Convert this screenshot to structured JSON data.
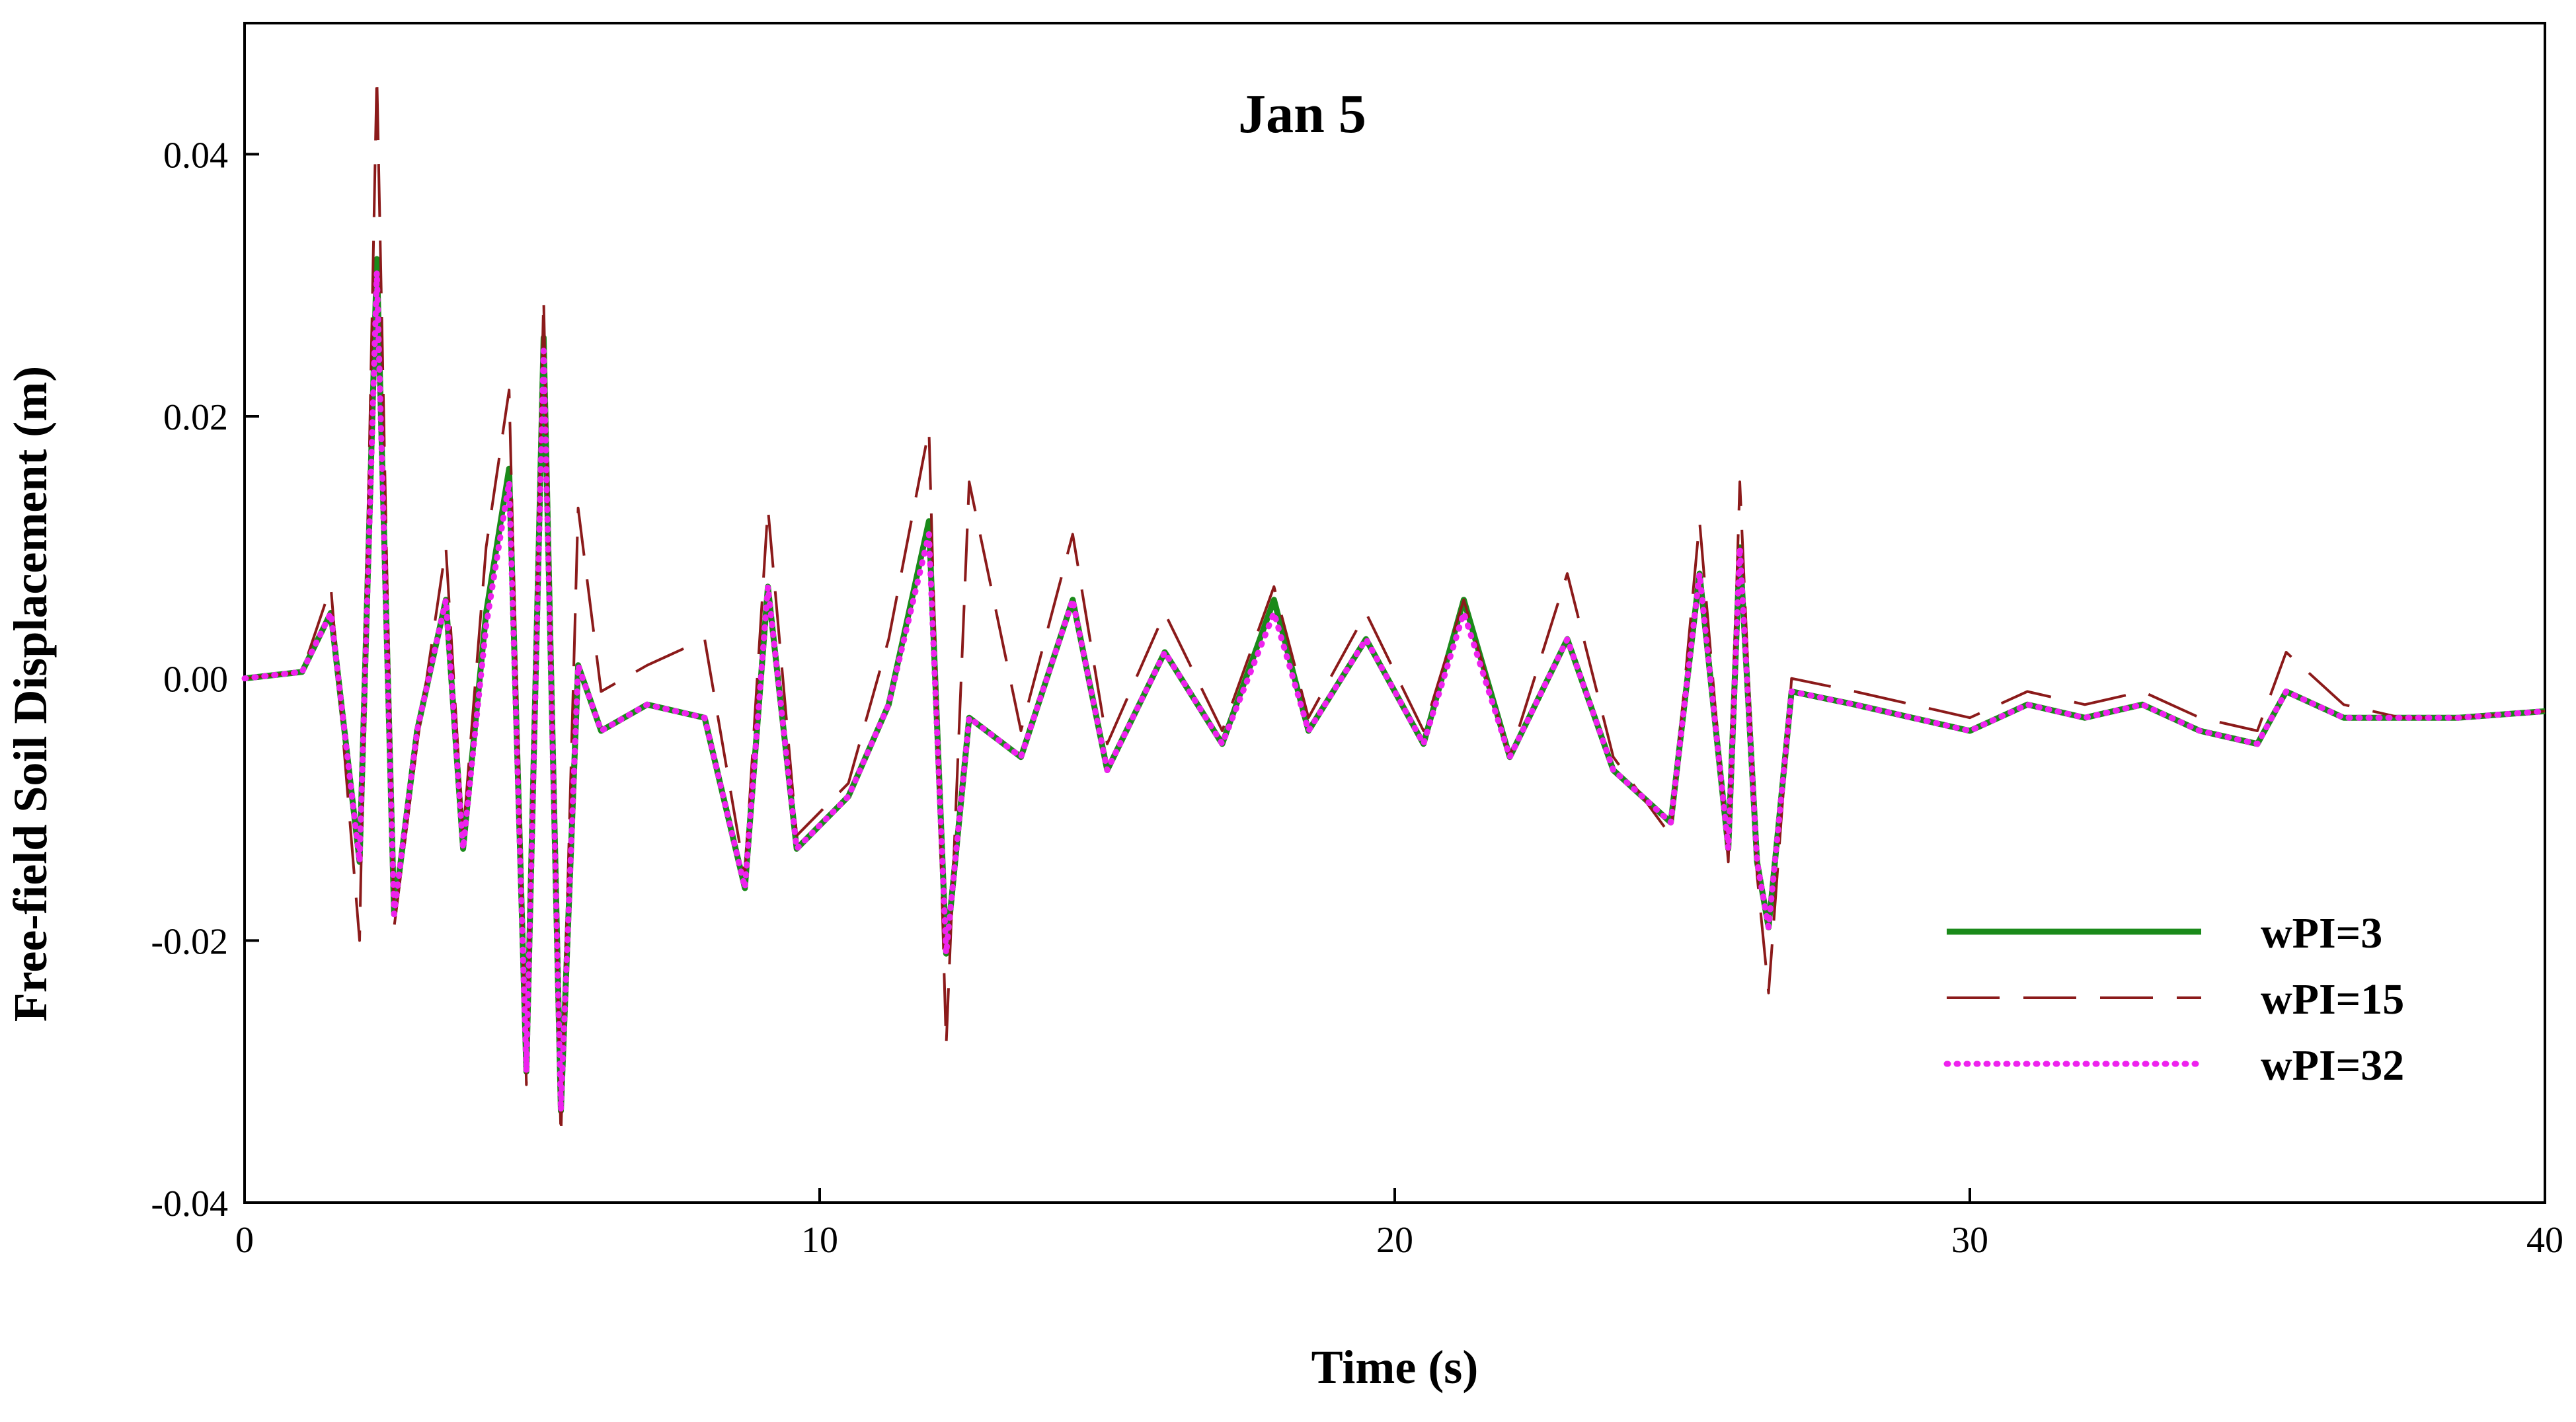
{
  "chart_data": {
    "type": "line",
    "title": "Jan 5",
    "xlabel": "Time (s)",
    "ylabel": "Free-field Soil Displacement (m)",
    "xlim": [
      0,
      40
    ],
    "ylim": [
      -0.04,
      0.05
    ],
    "x_ticks": [
      0,
      10,
      20,
      30,
      40
    ],
    "x_tick_labels": [
      "0",
      "10",
      "20",
      "30",
      "40"
    ],
    "y_ticks": [
      -0.04,
      -0.02,
      0.0,
      0.02,
      0.04
    ],
    "y_tick_labels": [
      "-0.04",
      "-0.02",
      "0.00",
      "0.02",
      "0.04"
    ],
    "grid": false,
    "legend_position": "lower-right",
    "series": [
      {
        "name": "wPI=3",
        "color": "#1a8a1a",
        "style": "solid",
        "x": [
          0,
          1.0,
          1.5,
          2.0,
          2.3,
          2.6,
          3.0,
          3.5,
          3.8,
          4.2,
          4.6,
          4.9,
          5.2,
          5.5,
          5.8,
          6.2,
          7.0,
          8.0,
          8.7,
          9.1,
          9.6,
          10.5,
          11.2,
          11.9,
          12.2,
          12.6,
          13.5,
          14.4,
          15.0,
          16.0,
          17.0,
          17.9,
          18.5,
          19.5,
          20.5,
          21.2,
          22.0,
          23.0,
          23.8,
          24.8,
          25.3,
          25.8,
          26.0,
          26.3,
          26.5,
          26.9,
          28.0,
          29.0,
          30.0,
          31.0,
          32.0,
          33.0,
          34.0,
          35.0,
          35.5,
          36.5,
          37.5,
          38.5,
          40.0
        ],
        "y": [
          0.0,
          0.0005,
          0.005,
          -0.014,
          0.032,
          -0.018,
          -0.004,
          0.006,
          -0.013,
          0.005,
          0.016,
          -0.03,
          0.026,
          -0.033,
          0.001,
          -0.004,
          -0.002,
          -0.003,
          -0.016,
          0.007,
          -0.013,
          -0.009,
          -0.002,
          0.012,
          -0.021,
          -0.003,
          -0.006,
          0.006,
          -0.007,
          0.002,
          -0.005,
          0.006,
          -0.004,
          0.003,
          -0.005,
          0.006,
          -0.006,
          0.003,
          -0.007,
          -0.011,
          0.008,
          -0.013,
          0.01,
          -0.014,
          -0.019,
          -0.001,
          -0.002,
          -0.003,
          -0.004,
          -0.002,
          -0.003,
          -0.002,
          -0.004,
          -0.005,
          -0.001,
          -0.003,
          -0.003,
          -0.003,
          -0.0025
        ]
      },
      {
        "name": "wPI=15",
        "color": "#8b1a1a",
        "style": "dashed",
        "x": [
          0,
          1.0,
          1.5,
          2.0,
          2.3,
          2.6,
          3.0,
          3.5,
          3.8,
          4.2,
          4.6,
          4.9,
          5.2,
          5.5,
          5.8,
          6.2,
          7.0,
          8.0,
          8.7,
          9.1,
          9.6,
          10.5,
          11.2,
          11.9,
          12.2,
          12.6,
          13.5,
          14.4,
          15.0,
          16.0,
          17.0,
          17.9,
          18.5,
          19.5,
          20.5,
          21.2,
          22.0,
          23.0,
          23.8,
          24.8,
          25.3,
          25.8,
          26.0,
          26.3,
          26.5,
          26.9,
          28.0,
          29.0,
          30.0,
          31.0,
          32.0,
          33.0,
          34.0,
          35.0,
          35.5,
          36.5,
          37.5,
          38.5,
          40.0
        ],
        "y": [
          0.0,
          0.0005,
          0.007,
          -0.02,
          0.046,
          -0.019,
          -0.005,
          0.01,
          -0.012,
          0.01,
          0.022,
          -0.031,
          0.029,
          -0.035,
          0.013,
          -0.001,
          0.001,
          0.003,
          -0.015,
          0.013,
          -0.012,
          -0.008,
          0.003,
          0.019,
          -0.028,
          0.015,
          -0.004,
          0.011,
          -0.005,
          0.005,
          -0.004,
          0.007,
          -0.003,
          0.005,
          -0.004,
          0.006,
          -0.006,
          0.008,
          -0.006,
          -0.012,
          0.012,
          -0.014,
          0.015,
          -0.015,
          -0.024,
          -0.0,
          -0.001,
          -0.002,
          -0.003,
          -0.001,
          -0.002,
          -0.001,
          -0.003,
          -0.004,
          0.002,
          -0.002,
          -0.003,
          -0.003,
          -0.0025
        ]
      },
      {
        "name": "wPI=32",
        "color": "#ee22ee",
        "style": "dotted",
        "x": [
          0,
          1.0,
          1.5,
          2.0,
          2.3,
          2.6,
          3.0,
          3.5,
          3.8,
          4.2,
          4.6,
          4.9,
          5.2,
          5.5,
          5.8,
          6.2,
          7.0,
          8.0,
          8.7,
          9.1,
          9.6,
          10.5,
          11.2,
          11.9,
          12.2,
          12.6,
          13.5,
          14.4,
          15.0,
          16.0,
          17.0,
          17.9,
          18.5,
          19.5,
          20.5,
          21.2,
          22.0,
          23.0,
          23.8,
          24.8,
          25.3,
          25.8,
          26.0,
          26.3,
          26.5,
          26.9,
          28.0,
          29.0,
          30.0,
          31.0,
          32.0,
          33.0,
          34.0,
          35.0,
          35.5,
          36.5,
          37.5,
          38.5,
          40.0
        ],
        "y": [
          0.0,
          0.0005,
          0.005,
          -0.014,
          0.031,
          -0.018,
          -0.004,
          0.006,
          -0.013,
          0.004,
          0.015,
          -0.03,
          0.025,
          -0.033,
          0.001,
          -0.004,
          -0.002,
          -0.003,
          -0.016,
          0.007,
          -0.013,
          -0.009,
          -0.002,
          0.011,
          -0.021,
          -0.003,
          -0.006,
          0.006,
          -0.007,
          0.002,
          -0.005,
          0.005,
          -0.004,
          0.003,
          -0.005,
          0.005,
          -0.006,
          0.003,
          -0.007,
          -0.011,
          0.008,
          -0.013,
          0.01,
          -0.014,
          -0.019,
          -0.001,
          -0.002,
          -0.003,
          -0.004,
          -0.002,
          -0.003,
          -0.002,
          -0.004,
          -0.005,
          -0.001,
          -0.003,
          -0.003,
          -0.003,
          -0.0025
        ]
      }
    ]
  }
}
